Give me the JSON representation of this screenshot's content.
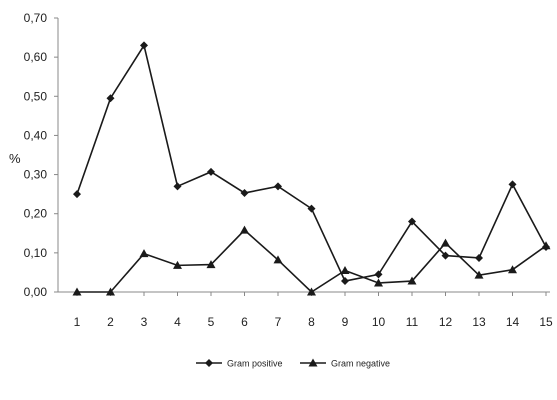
{
  "chart_data": {
    "type": "line",
    "title": "",
    "xlabel": "",
    "ylabel": "%",
    "categories": [
      "1",
      "2",
      "3",
      "4",
      "5",
      "6",
      "7",
      "8",
      "9",
      "10",
      "11",
      "12",
      "13",
      "14",
      "15"
    ],
    "ylim": [
      0,
      0.7
    ],
    "yticks": [
      "0,00",
      "0,10",
      "0,20",
      "0,30",
      "0,40",
      "0,50",
      "0,60",
      "0,70"
    ],
    "grid": false,
    "legend_position": "bottom",
    "series": [
      {
        "name": "Gram positive",
        "marker": "diamond",
        "color": "#1a1a1a",
        "values": [
          0.25,
          0.495,
          0.63,
          0.27,
          0.307,
          0.253,
          0.27,
          0.213,
          0.028,
          0.045,
          0.18,
          0.093,
          0.087,
          0.275,
          0.115
        ]
      },
      {
        "name": "Gram negative",
        "marker": "triangle",
        "color": "#1a1a1a",
        "values": [
          0.0,
          0.0,
          0.098,
          0.068,
          0.07,
          0.158,
          0.082,
          0.0,
          0.055,
          0.023,
          0.028,
          0.125,
          0.043,
          0.057,
          0.118
        ]
      }
    ]
  }
}
